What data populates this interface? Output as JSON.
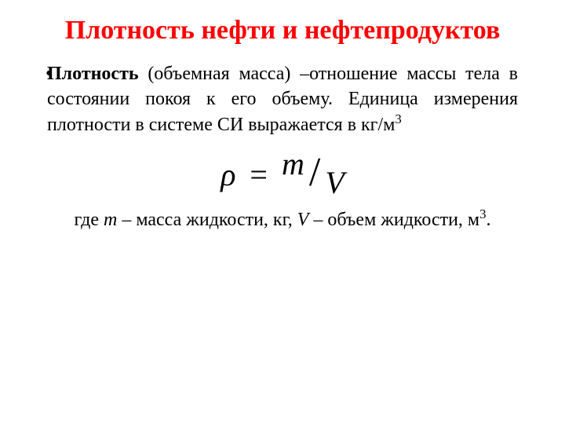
{
  "title": {
    "text": "Плотность нефти и нефтепродуктов",
    "color": "#ff0000",
    "fontsize": 34
  },
  "body": {
    "bullet": "•",
    "bold_lead": "Плотность",
    "text_rest": " (объемная масса) –отношение массы тела в состоянии покоя к его объему. Единица измерения плотности в системе СИ выражается в кг/м",
    "sup": "3",
    "color": "#000000",
    "fontsize": 24
  },
  "formula": {
    "rho": "ρ",
    "eq": "=",
    "m": "m",
    "slash": "/",
    "v": "V",
    "color": "#000000",
    "fontsize": 40
  },
  "legend": {
    "pre": "где ",
    "m": "m",
    "mid1": " – масса жидкости, кг, ",
    "v": "V",
    "mid2": " – объем жидкости, м",
    "sup": "3",
    "end": ".",
    "color": "#000000",
    "fontsize": 24
  },
  "background_color": "#ffffff"
}
